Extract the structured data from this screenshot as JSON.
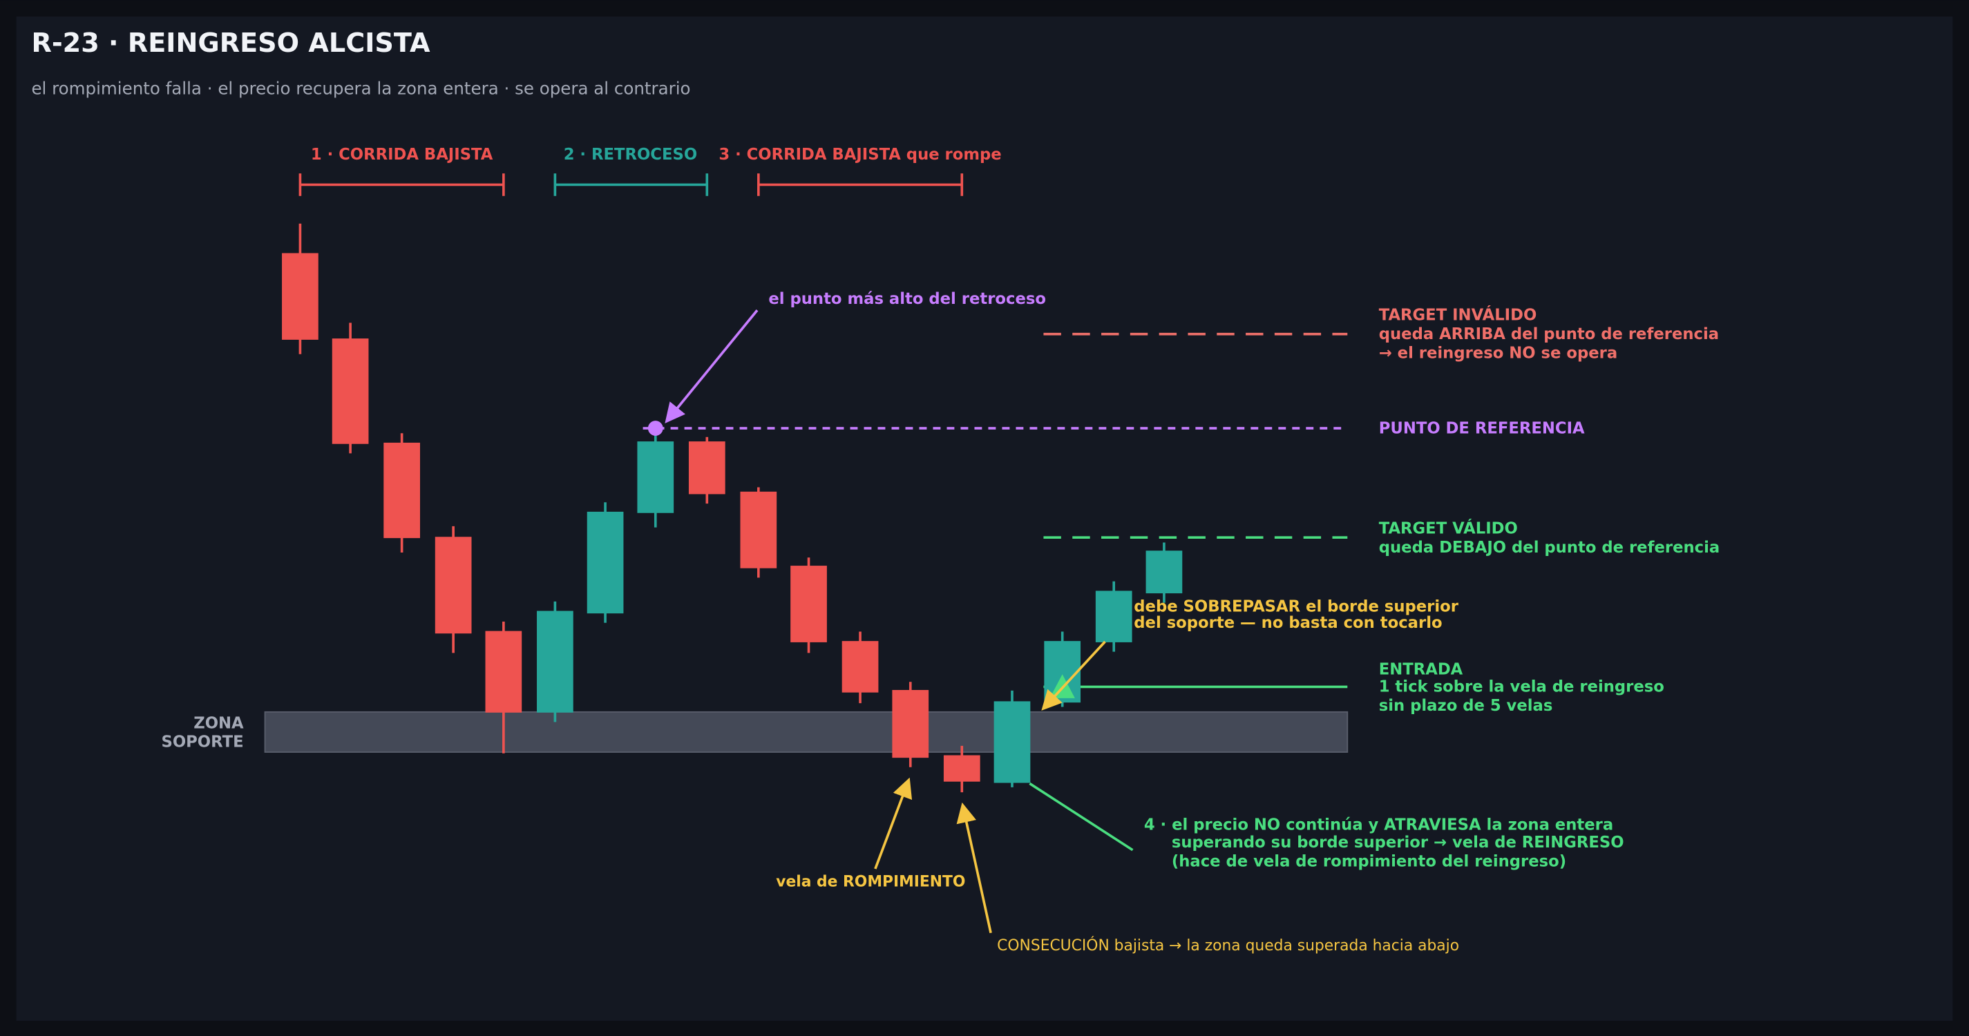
{
  "header": {
    "title": "R-23 · REINGRESO ALCISTA",
    "subtitle": "el rompimiento falla · el precio recupera la zona entera · se opera al contrario"
  },
  "phases": [
    "1 · CORRIDA BAJISTA",
    "2 · RETROCESO",
    "3 · CORRIDA BAJISTA que rompe"
  ],
  "zone_label": [
    "ZONA",
    "SOPORTE"
  ],
  "annotations": {
    "peak": "el punto más alto del retroceso",
    "target_invalid": [
      "TARGET INVÁLIDO",
      "queda ARRIBA del punto de referencia",
      "→ el reingreso NO se opera"
    ],
    "reference": "PUNTO DE REFERENCIA",
    "target_valid": [
      "TARGET VÁLIDO",
      "queda DEBAJO del punto de referencia"
    ],
    "surpass": [
      "debe SOBREPASAR el borde superior",
      "del soporte — no basta con tocarlo"
    ],
    "entry": [
      "ENTRADA",
      "1 tick sobre la vela de reingreso",
      "sin plazo de 5 velas"
    ],
    "breakout": "vela de ROMPIMIENTO",
    "consecution": "CONSECUCIÓN bajista → la zona queda superada hacia abajo",
    "reentry": [
      "4 · el precio NO continúa y ATRAVIESA la zona entera",
      "superando su borde superior → vela de REINGRESO",
      "(hace de vela de rompimiento del reingreso)"
    ]
  }
}
